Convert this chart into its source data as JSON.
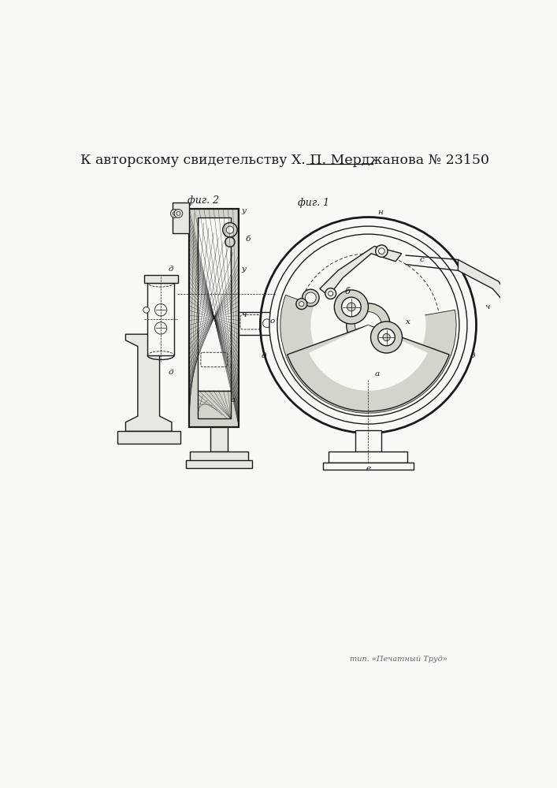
{
  "title": "К авторскому свидетельству Х. П. Мерджанова № 23150",
  "footer": "тип. «Печатный Труд»",
  "fig1_label": "фиг. 1",
  "fig2_label": "фиг. 2",
  "bg_color": "#f8f8f4",
  "line_color": "#1a1a1a",
  "hatch_color": "#333333"
}
